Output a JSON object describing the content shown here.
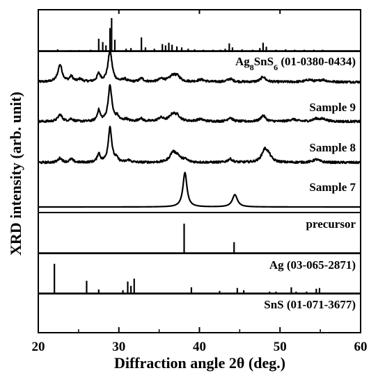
{
  "chart_data": {
    "type": "line",
    "xlabel": "Diffraction angle 2θ (deg.)",
    "ylabel": "XRD intensity (arb. unit)",
    "xlim": [
      20,
      60
    ],
    "x_ticks": [
      "20",
      "30",
      "40",
      "50",
      "60"
    ],
    "grid": false,
    "panels": [
      {
        "id": "ag8sns6",
        "label_parts": [
          {
            "t": "Ag"
          },
          {
            "t": "8",
            "sub": true
          },
          {
            "t": "SnS"
          },
          {
            "t": "6",
            "sub": true
          },
          {
            "t": " (01-0380-0434)"
          }
        ],
        "kind": "reference",
        "peaks": [
          [
            22.4,
            0.06
          ],
          [
            24.0,
            0.04
          ],
          [
            25.1,
            0.04
          ],
          [
            26.5,
            0.05
          ],
          [
            27.5,
            0.38
          ],
          [
            28.0,
            0.28
          ],
          [
            28.4,
            0.18
          ],
          [
            28.9,
            0.7
          ],
          [
            29.1,
            1.0
          ],
          [
            29.5,
            0.35
          ],
          [
            30.9,
            0.08
          ],
          [
            31.5,
            0.1
          ],
          [
            32.8,
            0.42
          ],
          [
            33.3,
            0.12
          ],
          [
            34.4,
            0.08
          ],
          [
            35.4,
            0.22
          ],
          [
            35.8,
            0.18
          ],
          [
            36.2,
            0.26
          ],
          [
            36.6,
            0.2
          ],
          [
            37.2,
            0.15
          ],
          [
            37.8,
            0.12
          ],
          [
            38.6,
            0.08
          ],
          [
            39.4,
            0.06
          ],
          [
            40.5,
            0.05
          ],
          [
            41.7,
            0.05
          ],
          [
            42.6,
            0.05
          ],
          [
            43.2,
            0.08
          ],
          [
            43.7,
            0.24
          ],
          [
            44.1,
            0.12
          ],
          [
            45.3,
            0.06
          ],
          [
            46.6,
            0.05
          ],
          [
            47.5,
            0.1
          ],
          [
            47.9,
            0.26
          ],
          [
            48.3,
            0.14
          ],
          [
            49.5,
            0.05
          ],
          [
            50.7,
            0.06
          ],
          [
            51.8,
            0.05
          ],
          [
            53.0,
            0.05
          ],
          [
            54.2,
            0.05
          ],
          [
            55.3,
            0.05
          ]
        ]
      },
      {
        "id": "sample9",
        "label_parts": [
          {
            "t": "Sample 9"
          }
        ],
        "kind": "pattern",
        "baseline": 0.08,
        "peaks": [
          [
            22.7,
            0.4,
            0.32
          ],
          [
            24.1,
            0.12,
            0.25
          ],
          [
            25.2,
            0.06,
            0.3
          ],
          [
            27.5,
            0.18,
            0.25
          ],
          [
            28.9,
            0.72,
            0.3
          ],
          [
            30.7,
            0.06,
            0.3
          ],
          [
            32.8,
            0.08,
            0.3
          ],
          [
            35.3,
            0.07,
            0.4
          ],
          [
            36.7,
            0.14,
            0.5
          ],
          [
            37.3,
            0.1,
            0.4
          ],
          [
            40.2,
            0.05,
            0.5
          ],
          [
            43.8,
            0.07,
            0.4
          ],
          [
            47.9,
            0.12,
            0.35
          ],
          [
            53.6,
            0.05,
            0.5
          ],
          [
            55.3,
            0.05,
            0.5
          ]
        ]
      },
      {
        "id": "sample8",
        "label_parts": [
          {
            "t": "Sample 8"
          }
        ],
        "kind": "pattern",
        "baseline": 0.08,
        "peaks": [
          [
            22.7,
            0.16,
            0.32
          ],
          [
            24.1,
            0.06,
            0.25
          ],
          [
            27.5,
            0.25,
            0.22
          ],
          [
            28.9,
            0.82,
            0.28
          ],
          [
            29.8,
            0.1,
            0.25
          ],
          [
            30.9,
            0.05,
            0.3
          ],
          [
            32.7,
            0.07,
            0.3
          ],
          [
            35.2,
            0.08,
            0.4
          ],
          [
            36.7,
            0.16,
            0.5
          ],
          [
            37.3,
            0.1,
            0.4
          ],
          [
            40.1,
            0.05,
            0.5
          ],
          [
            43.8,
            0.09,
            0.35
          ],
          [
            47.9,
            0.14,
            0.35
          ],
          [
            51.6,
            0.05,
            0.5
          ],
          [
            54.5,
            0.06,
            0.5
          ],
          [
            55.4,
            0.05,
            0.5
          ]
        ]
      },
      {
        "id": "sample7",
        "label_parts": [
          {
            "t": "Sample 7"
          }
        ],
        "kind": "pattern",
        "baseline": 0.08,
        "peaks": [
          [
            22.7,
            0.1,
            0.3
          ],
          [
            24.1,
            0.08,
            0.25
          ],
          [
            27.5,
            0.2,
            0.22
          ],
          [
            28.9,
            0.82,
            0.26
          ],
          [
            29.7,
            0.08,
            0.25
          ],
          [
            31.2,
            0.05,
            0.3
          ],
          [
            36.7,
            0.22,
            0.45
          ],
          [
            37.3,
            0.12,
            0.4
          ],
          [
            38.2,
            0.06,
            0.4
          ],
          [
            43.8,
            0.08,
            0.35
          ],
          [
            48.1,
            0.28,
            0.45
          ],
          [
            48.6,
            0.12,
            0.4
          ],
          [
            54.5,
            0.07,
            0.5
          ]
        ]
      },
      {
        "id": "precursor",
        "label_parts": [
          {
            "t": "precursor"
          }
        ],
        "kind": "pattern",
        "baseline": 0.0,
        "peaks": [
          [
            38.2,
            0.9,
            0.3
          ],
          [
            44.4,
            0.32,
            0.38
          ]
        ]
      },
      {
        "id": "ag",
        "label_parts": [
          {
            "t": "Ag (03-065-2871)"
          }
        ],
        "kind": "reference",
        "peaks": [
          [
            38.1,
            1.0
          ],
          [
            44.3,
            0.38
          ]
        ]
      },
      {
        "id": "sns",
        "label_parts": [
          {
            "t": "SnS (01-071-3677)"
          }
        ],
        "kind": "reference",
        "peaks": [
          [
            22.0,
            0.83
          ],
          [
            26.0,
            0.36
          ],
          [
            27.5,
            0.12
          ],
          [
            30.5,
            0.1
          ],
          [
            31.1,
            0.34
          ],
          [
            31.5,
            0.22
          ],
          [
            31.9,
            0.42
          ],
          [
            39.0,
            0.18
          ],
          [
            42.5,
            0.08
          ],
          [
            44.7,
            0.16
          ],
          [
            45.5,
            0.1
          ],
          [
            48.7,
            0.06
          ],
          [
            49.5,
            0.06
          ],
          [
            51.4,
            0.18
          ],
          [
            52.0,
            0.06
          ],
          [
            53.3,
            0.06
          ],
          [
            54.5,
            0.14
          ],
          [
            54.9,
            0.16
          ]
        ]
      }
    ]
  }
}
